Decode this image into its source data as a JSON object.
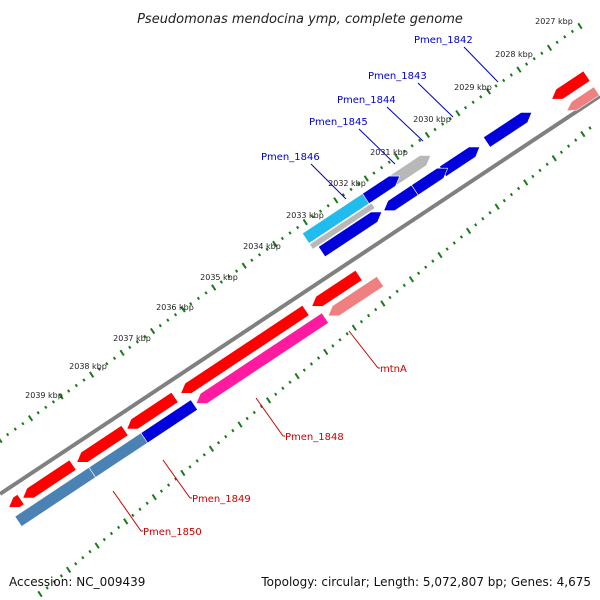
{
  "title": "Pseudomonas mendocina ymp, complete genome",
  "footer": {
    "accession": "Accession: NC_009439",
    "topology": "Topology: circular; Length: 5,072,807 bp; Genes: 4,675"
  },
  "scale_labels": [
    "2027 kbp",
    "2028 kbp",
    "2029 kbp",
    "2030 kbp",
    "2031 kbp",
    "2032 kbp",
    "2033 kbp",
    "2034 kbp",
    "2035 kbp",
    "2036 kbp",
    "2037 kbp",
    "2038 kbp",
    "2039 kbp"
  ],
  "gene_labels": {
    "pmen_1842": "Pmen_1842",
    "pmen_1843": "Pmen_1843",
    "pmen_1844": "Pmen_1844",
    "pmen_1845": "Pmen_1845",
    "pmen_1846": "Pmen_1846",
    "mtna": "mtnA",
    "pmen_1848": "Pmen_1848",
    "pmen_1849": "Pmen_1849",
    "pmen_1850": "Pmen_1850"
  },
  "colors": {
    "forward_cds": "#0000dd",
    "reverse_cds": "#ff0000",
    "rna_gray": "#b8b8b8",
    "cyan_gene": "#22bbee",
    "pink_gene": "#ff1aa0",
    "steel_gene": "#4a82b4",
    "light_red_gene": "#f08080",
    "backbone": "#808080",
    "ticks": "#1a7a1a",
    "label_forward": "#0000cc",
    "label_reverse": "#cc0000"
  }
}
